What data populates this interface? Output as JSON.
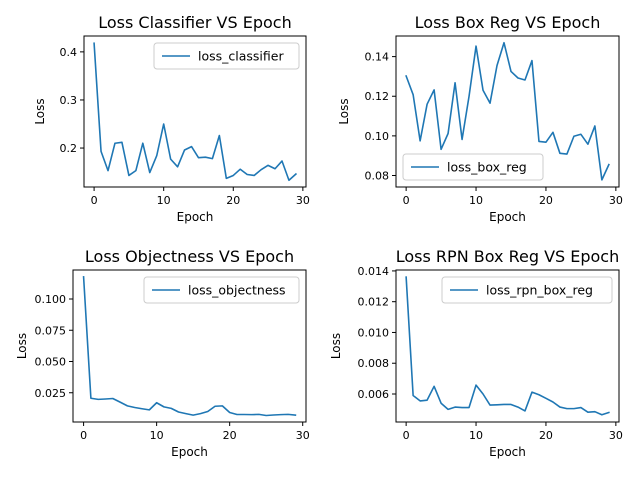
{
  "chart_data": [
    {
      "type": "line",
      "title": "Loss Classifier VS Epoch",
      "xlabel": "Epoch",
      "ylabel": "Loss",
      "xlim": [
        -1.45,
        30.45
      ],
      "ylim": [
        0.119,
        0.433
      ],
      "xticks": [
        0,
        10,
        20,
        30
      ],
      "yticks": [
        0.2,
        0.3,
        0.4
      ],
      "ytick_labels": [
        "0.2",
        "0.3",
        "0.4"
      ],
      "legend_loc": "upper right",
      "grid": false,
      "series": [
        {
          "name": "loss_classifier",
          "color": "#1f77b4",
          "x": [
            0,
            1,
            2,
            3,
            4,
            5,
            6,
            7,
            8,
            9,
            10,
            11,
            12,
            13,
            14,
            15,
            16,
            17,
            18,
            19,
            20,
            21,
            22,
            23,
            24,
            25,
            26,
            27,
            28,
            29
          ],
          "y": [
            0.418,
            0.193,
            0.153,
            0.21,
            0.212,
            0.143,
            0.153,
            0.21,
            0.149,
            0.184,
            0.25,
            0.177,
            0.161,
            0.196,
            0.203,
            0.18,
            0.181,
            0.178,
            0.226,
            0.137,
            0.143,
            0.156,
            0.145,
            0.143,
            0.155,
            0.164,
            0.157,
            0.173,
            0.133,
            0.146
          ]
        }
      ]
    },
    {
      "type": "line",
      "title": "Loss Box Reg VS Epoch",
      "xlabel": "Epoch",
      "ylabel": "Loss",
      "xlim": [
        -1.45,
        30.45
      ],
      "ylim": [
        0.0742,
        0.1504
      ],
      "xticks": [
        0,
        10,
        20,
        30
      ],
      "yticks": [
        0.08,
        0.1,
        0.12,
        0.14
      ],
      "ytick_labels": [
        "0.08",
        "0.10",
        "0.12",
        "0.14"
      ],
      "legend_loc": "lower left",
      "grid": false,
      "series": [
        {
          "name": "loss_box_reg",
          "color": "#1f77b4",
          "x": [
            0,
            1,
            2,
            3,
            4,
            5,
            6,
            7,
            8,
            9,
            10,
            11,
            12,
            13,
            14,
            15,
            16,
            17,
            18,
            19,
            20,
            21,
            22,
            23,
            24,
            25,
            26,
            27,
            28,
            29
          ],
          "y": [
            0.1302,
            0.1208,
            0.0975,
            0.116,
            0.1232,
            0.0932,
            0.1012,
            0.1268,
            0.0982,
            0.12,
            0.1453,
            0.123,
            0.1165,
            0.1355,
            0.147,
            0.1325,
            0.1292,
            0.1282,
            0.138,
            0.0972,
            0.0968,
            0.1018,
            0.0912,
            0.0908,
            0.0998,
            0.1008,
            0.0958,
            0.105,
            0.0778,
            0.0855
          ]
        }
      ]
    },
    {
      "type": "line",
      "title": "Loss Objectness VS Epoch",
      "xlabel": "Epoch",
      "ylabel": "Loss",
      "xlim": [
        -1.45,
        30.45
      ],
      "ylim": [
        0.0016,
        0.1232
      ],
      "xticks": [
        0,
        10,
        20,
        30
      ],
      "yticks": [
        0.025,
        0.05,
        0.075,
        0.1
      ],
      "ytick_labels": [
        "0.025",
        "0.050",
        "0.075",
        "0.100"
      ],
      "legend_loc": "upper right",
      "grid": false,
      "series": [
        {
          "name": "loss_objectness",
          "color": "#1f77b4",
          "x": [
            0,
            1,
            2,
            3,
            4,
            5,
            6,
            7,
            8,
            9,
            10,
            11,
            12,
            13,
            14,
            15,
            16,
            17,
            18,
            19,
            20,
            21,
            22,
            23,
            24,
            25,
            26,
            27,
            28,
            29
          ],
          "y": [
            0.1177,
            0.0206,
            0.0197,
            0.02,
            0.0204,
            0.0175,
            0.0145,
            0.0132,
            0.0122,
            0.0113,
            0.017,
            0.0137,
            0.0125,
            0.0096,
            0.0083,
            0.0071,
            0.0083,
            0.01,
            0.0142,
            0.0145,
            0.0092,
            0.0076,
            0.0076,
            0.0075,
            0.0077,
            0.0068,
            0.0072,
            0.0075,
            0.0077,
            0.0071
          ]
        }
      ]
    },
    {
      "type": "line",
      "title": "Loss RPN Box Reg VS Epoch",
      "xlabel": "Epoch",
      "ylabel": "Loss",
      "xlim": [
        -1.45,
        30.45
      ],
      "ylim": [
        0.00418,
        0.01406
      ],
      "xticks": [
        0,
        10,
        20,
        30
      ],
      "yticks": [
        0.006,
        0.008,
        0.01,
        0.012,
        0.014
      ],
      "ytick_labels": [
        "0.006",
        "0.008",
        "0.010",
        "0.012",
        "0.014"
      ],
      "legend_loc": "upper right",
      "grid": false,
      "series": [
        {
          "name": "loss_rpn_box_reg",
          "color": "#1f77b4",
          "x": [
            0,
            1,
            2,
            3,
            4,
            5,
            6,
            7,
            8,
            9,
            10,
            11,
            12,
            13,
            14,
            15,
            16,
            17,
            18,
            19,
            20,
            21,
            22,
            23,
            24,
            25,
            26,
            27,
            28,
            29
          ],
          "y": [
            0.0136,
            0.0059,
            0.00555,
            0.0056,
            0.0065,
            0.0054,
            0.005,
            0.00515,
            0.00512,
            0.00512,
            0.00658,
            0.006,
            0.00528,
            0.0053,
            0.00532,
            0.00532,
            0.00515,
            0.0049,
            0.00612,
            0.00595,
            0.00572,
            0.00548,
            0.00515,
            0.00505,
            0.00505,
            0.00512,
            0.00482,
            0.00485,
            0.00465,
            0.0048
          ]
        }
      ]
    }
  ]
}
